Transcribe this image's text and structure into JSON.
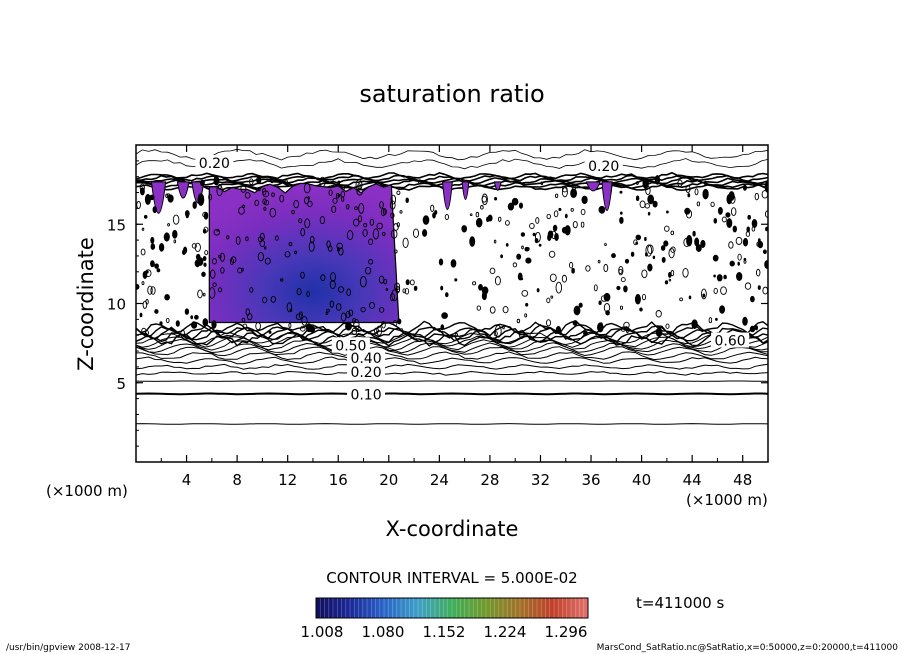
{
  "chart_data": {
    "type": "heatmap",
    "title": "saturation ratio",
    "xlabel": "X-coordinate",
    "ylabel": "Z-coordinate",
    "x_unit": "(×1000 m)",
    "z_unit": "(×1000 m)",
    "xlim": [
      0,
      50
    ],
    "ylim": [
      0,
      20
    ],
    "x_ticks": [
      4,
      8,
      12,
      16,
      20,
      24,
      28,
      32,
      36,
      40,
      44,
      48
    ],
    "y_ticks": [
      5,
      10,
      15
    ],
    "contour_interval_text": "CONTOUR INTERVAL = 5.000E-02",
    "contour_labels": [
      {
        "text": "0.20",
        "x": 6.2,
        "z": 18.8
      },
      {
        "text": "0.20",
        "x": 37.0,
        "z": 18.6
      },
      {
        "text": "0.10",
        "x": 18.2,
        "z": 4.2
      },
      {
        "text": "0.20",
        "x": 18.2,
        "z": 5.6
      },
      {
        "text": "0.40",
        "x": 18.2,
        "z": 6.5
      },
      {
        "text": "0.50",
        "x": 17.0,
        "z": 7.3
      },
      {
        "text": "0.60",
        "x": 47.0,
        "z": 7.6
      }
    ],
    "layer_lines_z": [
      2.4,
      4.3,
      5.1,
      5.6,
      6.0,
      6.4,
      6.7,
      7.0,
      7.2,
      7.4,
      7.6,
      7.8
    ],
    "moist_layer": {
      "z_bottom": 8.0,
      "z_top": 17.8
    },
    "supersaturated_core": {
      "x_range": [
        5.8,
        20.8
      ],
      "z_range": [
        8.8,
        17.6
      ],
      "max_at": {
        "x": 14.5,
        "z": 10.2
      }
    },
    "colorbar": {
      "labels": [
        "1.008",
        "1.080",
        "1.152",
        "1.224",
        "1.296"
      ],
      "min": 1.008,
      "max": 1.296,
      "colors": [
        "#101060",
        "#1c2a9c",
        "#2a66c8",
        "#3fa0c8",
        "#3fae5a",
        "#6f9a2c",
        "#a2722a",
        "#c0402a",
        "#e0706a"
      ]
    },
    "time_text": "t=411000 s",
    "grid": false
  },
  "footer": {
    "left": "/usr/bin/gpview   2008-12-17",
    "right": "MarsCond_SatRatio.nc@SatRatio,x=0:50000,z=0:20000,t=411000"
  }
}
